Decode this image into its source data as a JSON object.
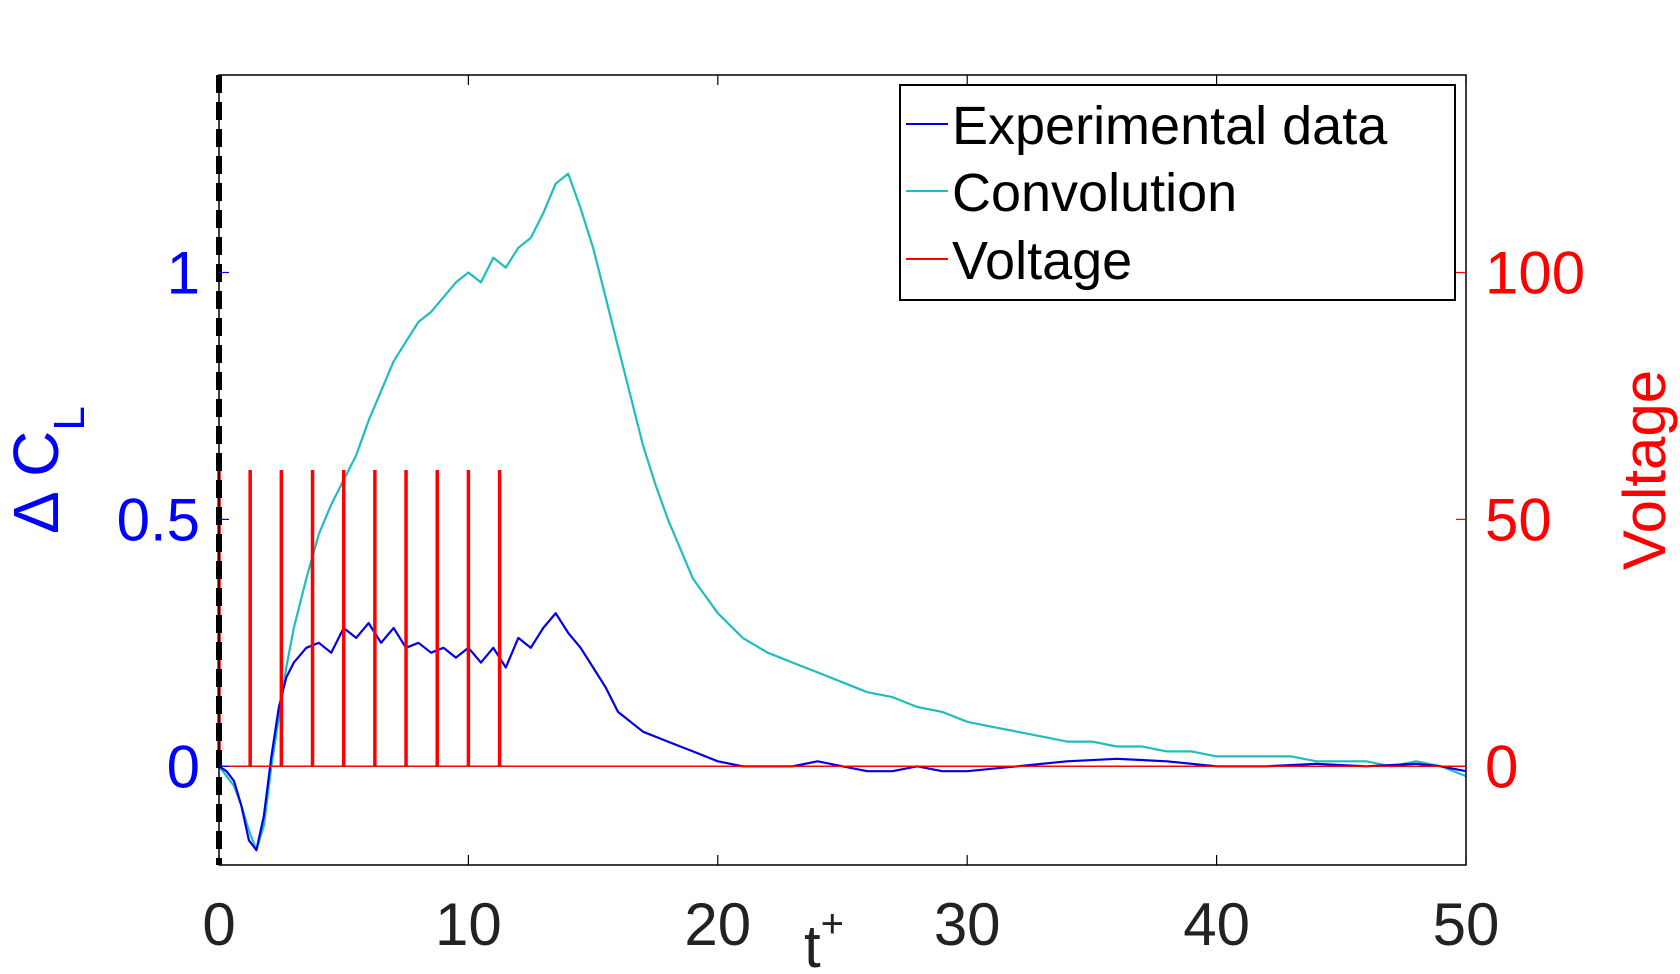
{
  "chart_data": {
    "type": "line",
    "title": "",
    "xlabel": "t",
    "xlabel_sup": "+",
    "ylabel_left": "Δ C",
    "ylabel_left_sub": "L",
    "ylabel_right": "Voltage",
    "xlim": [
      0,
      50
    ],
    "ylim_left": [
      -0.2,
      1.4
    ],
    "ylim_right": [
      -20,
      140
    ],
    "xticks": [
      0,
      10,
      20,
      30,
      40,
      50
    ],
    "yticks_left": [
      0,
      0.5,
      1
    ],
    "yticks_right": [
      0,
      50,
      100
    ],
    "legend_position": "top-right",
    "colors": {
      "experimental": "#0000e6",
      "convolution": "#1fbdbd",
      "voltage": "#ff0000",
      "left_axis": "#0000ff",
      "right_axis": "#ff0000",
      "vline": "#000000"
    },
    "vline_x": 0,
    "series": [
      {
        "name": "Experimental data",
        "axis": "left",
        "x": [
          0,
          0.3,
          0.6,
          0.9,
          1.2,
          1.5,
          1.8,
          2.1,
          2.4,
          2.7,
          3.0,
          3.5,
          4.0,
          4.5,
          5.0,
          5.5,
          6.0,
          6.5,
          7.0,
          7.5,
          8.0,
          8.5,
          9.0,
          9.5,
          10.0,
          10.5,
          11.0,
          11.5,
          12.0,
          12.5,
          13.0,
          13.5,
          14.0,
          14.5,
          15.0,
          15.5,
          16.0,
          17.0,
          18.0,
          19.0,
          20.0,
          21.0,
          22.0,
          23.0,
          24.0,
          25.0,
          26.0,
          27.0,
          28.0,
          29.0,
          30.0,
          32.0,
          34.0,
          36.0,
          38.0,
          40.0,
          42.0,
          44.0,
          46.0,
          48.0,
          49.0,
          50.0
        ],
        "values": [
          0.0,
          -0.01,
          -0.03,
          -0.08,
          -0.15,
          -0.17,
          -0.1,
          0.02,
          0.12,
          0.18,
          0.21,
          0.24,
          0.25,
          0.23,
          0.28,
          0.26,
          0.29,
          0.25,
          0.28,
          0.24,
          0.25,
          0.23,
          0.24,
          0.22,
          0.24,
          0.21,
          0.24,
          0.2,
          0.26,
          0.24,
          0.28,
          0.31,
          0.27,
          0.24,
          0.2,
          0.16,
          0.11,
          0.07,
          0.05,
          0.03,
          0.01,
          0.0,
          0.0,
          0.0,
          0.01,
          0.0,
          -0.01,
          -0.01,
          0.0,
          -0.01,
          -0.01,
          0.0,
          0.01,
          0.015,
          0.01,
          0.0,
          0.0,
          0.005,
          0.0,
          0.005,
          0.0,
          -0.01
        ]
      },
      {
        "name": "Convolution",
        "axis": "left",
        "x": [
          0,
          0.3,
          0.6,
          0.9,
          1.2,
          1.5,
          1.8,
          2.1,
          2.4,
          2.7,
          3.0,
          3.5,
          4.0,
          4.5,
          5.0,
          5.5,
          6.0,
          6.5,
          7.0,
          7.5,
          8.0,
          8.5,
          9.0,
          9.5,
          10.0,
          10.5,
          11.0,
          11.5,
          12.0,
          12.5,
          13.0,
          13.5,
          14.0,
          14.5,
          15.0,
          15.5,
          16.0,
          16.5,
          17.0,
          17.5,
          18.0,
          18.5,
          19.0,
          20.0,
          21.0,
          22.0,
          23.0,
          24.0,
          25.0,
          26.0,
          27.0,
          28.0,
          29.0,
          30.0,
          31.0,
          32.0,
          33.0,
          34.0,
          35.0,
          36.0,
          37.0,
          38.0,
          39.0,
          40.0,
          41.0,
          42.0,
          43.0,
          44.0,
          45.0,
          46.0,
          47.0,
          48.0,
          49.0,
          50.0
        ],
        "values": [
          0.0,
          -0.02,
          -0.04,
          -0.08,
          -0.13,
          -0.17,
          -0.12,
          0.0,
          0.1,
          0.2,
          0.28,
          0.38,
          0.47,
          0.53,
          0.58,
          0.63,
          0.7,
          0.76,
          0.82,
          0.86,
          0.9,
          0.92,
          0.95,
          0.98,
          1.0,
          0.98,
          1.03,
          1.01,
          1.05,
          1.07,
          1.12,
          1.18,
          1.2,
          1.13,
          1.05,
          0.95,
          0.85,
          0.75,
          0.65,
          0.57,
          0.5,
          0.44,
          0.38,
          0.31,
          0.26,
          0.23,
          0.21,
          0.19,
          0.17,
          0.15,
          0.14,
          0.12,
          0.11,
          0.09,
          0.08,
          0.07,
          0.06,
          0.05,
          0.05,
          0.04,
          0.04,
          0.03,
          0.03,
          0.02,
          0.02,
          0.02,
          0.02,
          0.01,
          0.01,
          0.01,
          0.0,
          0.01,
          0.0,
          -0.02
        ]
      },
      {
        "name": "Voltage",
        "axis": "right",
        "type": "pulse",
        "baseline": 0,
        "pulse_height": 60,
        "pulse_times": [
          0.0,
          1.25,
          2.5,
          3.75,
          5.0,
          6.25,
          7.5,
          8.75,
          10.0,
          11.25
        ]
      }
    ]
  }
}
